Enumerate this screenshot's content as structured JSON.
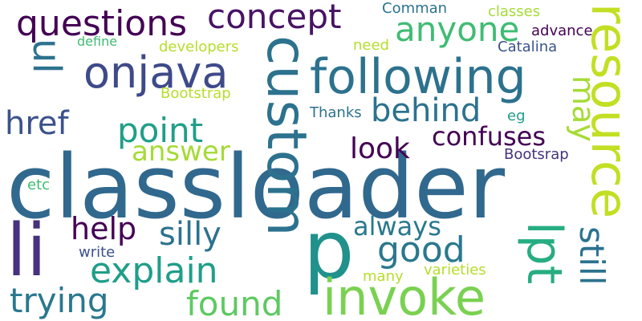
{
  "words": [
    {
      "text": "classloader",
      "color": "#31688e"
    },
    {
      "text": "li",
      "color": "#46327e"
    },
    {
      "text": "p",
      "color": "#21918c"
    },
    {
      "text": "custom",
      "color": "#2c728e"
    },
    {
      "text": "invoke",
      "color": "#7ad151"
    },
    {
      "text": "resource",
      "color": "#c2df23"
    },
    {
      "text": "following",
      "color": "#2c728e"
    },
    {
      "text": "onjava",
      "color": "#3e4a89"
    },
    {
      "text": "questions",
      "color": "#440154"
    },
    {
      "text": "concept",
      "color": "#471365"
    },
    {
      "text": "ul",
      "color": "#2c728e"
    },
    {
      "text": "lpt",
      "color": "#26ad81"
    },
    {
      "text": "anyone",
      "color": "#3fbc73"
    },
    {
      "text": "href",
      "color": "#3b528b"
    },
    {
      "text": "point",
      "color": "#1f9e89"
    },
    {
      "text": "behind",
      "color": "#2c728e"
    },
    {
      "text": "may",
      "color": "#a5db36"
    },
    {
      "text": "answer",
      "color": "#a5db36"
    },
    {
      "text": "confuses",
      "color": "#440154"
    },
    {
      "text": "look",
      "color": "#440154"
    },
    {
      "text": "still",
      "color": "#2c728e"
    },
    {
      "text": "help",
      "color": "#440154"
    },
    {
      "text": "silly",
      "color": "#2c728e"
    },
    {
      "text": "always",
      "color": "#2a788e"
    },
    {
      "text": "good",
      "color": "#2a788e"
    },
    {
      "text": "explain",
      "color": "#1f9e89"
    },
    {
      "text": "trying",
      "color": "#2a788e"
    },
    {
      "text": "found",
      "color": "#5ec962"
    },
    {
      "text": "Comman",
      "color": "#2c728e"
    },
    {
      "text": "classes",
      "color": "#a5db36"
    },
    {
      "text": "advance",
      "color": "#440154"
    },
    {
      "text": "Catalina",
      "color": "#3b528b"
    },
    {
      "text": "define",
      "color": "#3fbc73"
    },
    {
      "text": "developers",
      "color": "#b5de2b"
    },
    {
      "text": "need",
      "color": "#b5de2b"
    },
    {
      "text": "Bootstrap",
      "color": "#b5de2b"
    },
    {
      "text": "Thanks",
      "color": "#2c728e"
    },
    {
      "text": "eg",
      "color": "#1f9e89"
    },
    {
      "text": "Bootsrap",
      "color": "#46327e"
    },
    {
      "text": "etc",
      "color": "#3fbc73"
    },
    {
      "text": "write",
      "color": "#3b528b"
    },
    {
      "text": "many",
      "color": "#b5de2b"
    },
    {
      "text": "varieties",
      "color": "#b5de2b"
    }
  ]
}
